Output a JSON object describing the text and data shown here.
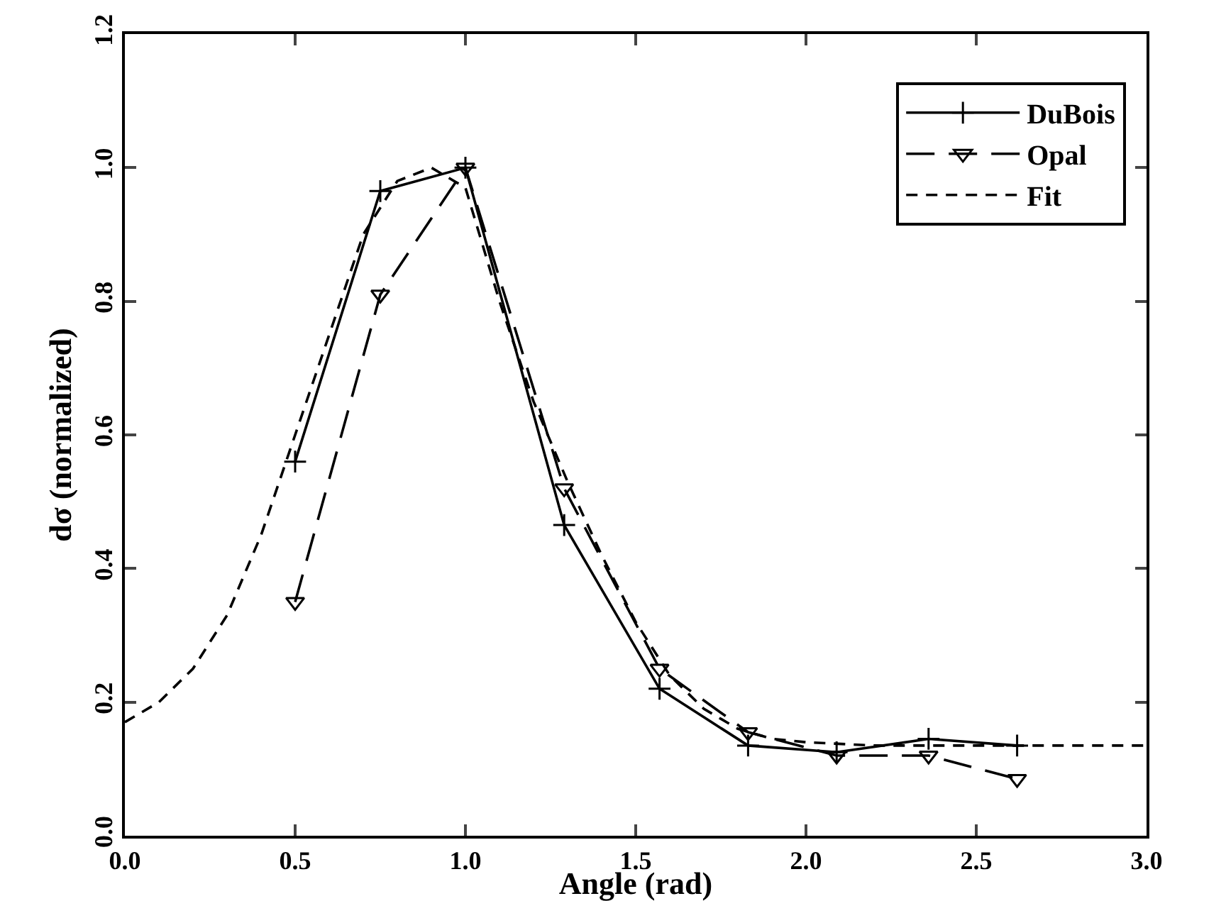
{
  "chart_data": {
    "type": "line",
    "xlabel": "Angle (rad)",
    "ylabel": "dσ (normalized)",
    "xlim": [
      0,
      3
    ],
    "ylim": [
      0,
      1.2
    ],
    "xticks": [
      {
        "value": 0,
        "label": "0.0"
      },
      {
        "value": 0.5,
        "label": "0.5"
      },
      {
        "value": 1,
        "label": "1.0"
      },
      {
        "value": 1.5,
        "label": "1.5"
      },
      {
        "value": 2,
        "label": "2.0"
      },
      {
        "value": 2.5,
        "label": "2.5"
      },
      {
        "value": 3,
        "label": "3.0"
      }
    ],
    "yticks": [
      {
        "value": 0,
        "label": "0.0"
      },
      {
        "value": 0.2,
        "label": "0.2"
      },
      {
        "value": 0.4,
        "label": "0.4"
      },
      {
        "value": 0.6,
        "label": "0.6"
      },
      {
        "value": 0.8,
        "label": "0.8"
      },
      {
        "value": 1,
        "label": "1.0"
      },
      {
        "value": 1.2,
        "label": "1.2"
      }
    ],
    "grid": false,
    "legend": "top right",
    "series": [
      {
        "name": "DuBois",
        "color": "#000000",
        "marker": "cross",
        "line_style": "solid",
        "x": [
          0.5,
          0.75,
          1.0,
          1.29,
          1.57,
          1.83,
          2.09,
          2.36,
          2.62
        ],
        "values": [
          0.56,
          0.965,
          1.0,
          0.465,
          0.22,
          0.135,
          0.125,
          0.145,
          0.135
        ]
      },
      {
        "name": "Opal",
        "color": "#000000",
        "marker": "triangle",
        "line_style": "dashed",
        "x": [
          0.5,
          0.75,
          1.0,
          1.29,
          1.57,
          1.83,
          2.09,
          2.36,
          2.62
        ],
        "values": [
          0.35,
          0.81,
          1.0,
          0.52,
          0.25,
          0.155,
          0.12,
          0.12,
          0.085
        ]
      },
      {
        "name": "Fit",
        "color": "#000000",
        "marker": "none",
        "line_style": "dotted",
        "x": [
          0,
          0.1,
          0.2,
          0.3,
          0.4,
          0.5,
          0.6,
          0.7,
          0.8,
          0.9,
          1.0,
          1.1,
          1.2,
          1.3,
          1.4,
          1.5,
          1.6,
          1.7,
          1.8,
          1.9,
          2.0,
          2.2,
          2.5,
          3.0
        ],
        "values": [
          0.17,
          0.2,
          0.25,
          0.33,
          0.45,
          0.6,
          0.75,
          0.9,
          0.98,
          1.0,
          0.97,
          0.8,
          0.65,
          0.53,
          0.42,
          0.32,
          0.24,
          0.19,
          0.16,
          0.145,
          0.14,
          0.135,
          0.135,
          0.135
        ]
      }
    ]
  }
}
